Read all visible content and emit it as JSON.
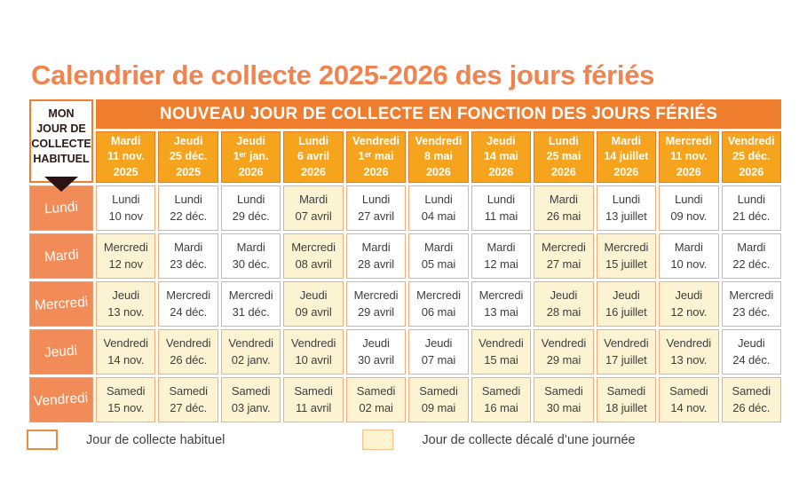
{
  "title": "Calendrier de collecte 2025-2026 des jours fériés",
  "colors": {
    "title_orange": "#F0834E",
    "band_orange": "#EE7D2E",
    "holiday_header_gold": "#F6A41D",
    "row_header_salmon": "#F18C58",
    "shifted_cell_cream": "#FBF3D1",
    "cell_border_peach": "#F2AD7C",
    "text_dark": "#414042",
    "arrow_dark": "#2A1216"
  },
  "table": {
    "corner_header": "MON\nJOUR DE\nCOLLECTE\nHABITUEL",
    "main_header": "NOUVEAU JOUR DE COLLECTE EN FONCTION DES JOURS FÉRIÉS",
    "holiday_columns": [
      {
        "day": "Mardi",
        "date": "11 nov.",
        "year": "2025"
      },
      {
        "day": "Jeudi",
        "date": "25 déc.",
        "year": "2025"
      },
      {
        "day": "Jeudi",
        "date": "1ᵉʳ jan.",
        "year": "2026"
      },
      {
        "day": "Lundi",
        "date": "6 avril",
        "year": "2026"
      },
      {
        "day": "Vendredi",
        "date": "1ᵉʳ mai",
        "year": "2026"
      },
      {
        "day": "Vendredi",
        "date": "8 mai",
        "year": "2026"
      },
      {
        "day": "Jeudi",
        "date": "14 mai",
        "year": "2026"
      },
      {
        "day": "Lundi",
        "date": "25 mai",
        "year": "2026"
      },
      {
        "day": "Mardi",
        "date": "14 juillet",
        "year": "2026"
      },
      {
        "day": "Mercredi",
        "date": "11 nov.",
        "year": "2026"
      },
      {
        "day": "Vendredi",
        "date": "25 déc.",
        "year": "2026"
      }
    ],
    "rows": [
      {
        "label": "Lundi",
        "cells": [
          {
            "day": "Lundi",
            "date": "10 nov",
            "shifted": false
          },
          {
            "day": "Lundi",
            "date": "22 déc.",
            "shifted": false
          },
          {
            "day": "Lundi",
            "date": "29 déc.",
            "shifted": false
          },
          {
            "day": "Mardi",
            "date": "07 avril",
            "shifted": true
          },
          {
            "day": "Lundi",
            "date": "27 avril",
            "shifted": false
          },
          {
            "day": "Lundi",
            "date": "04 mai",
            "shifted": false
          },
          {
            "day": "Lundi",
            "date": "11 mai",
            "shifted": false
          },
          {
            "day": "Mardi",
            "date": "26 mai",
            "shifted": true
          },
          {
            "day": "Lundi",
            "date": "13 juillet",
            "shifted": false
          },
          {
            "day": "Lundi",
            "date": "09 nov.",
            "shifted": false
          },
          {
            "day": "Lundi",
            "date": "21 déc.",
            "shifted": false
          }
        ]
      },
      {
        "label": "Mardi",
        "cells": [
          {
            "day": "Mercredi",
            "date": "12 nov",
            "shifted": true
          },
          {
            "day": "Mardi",
            "date": "23 déc.",
            "shifted": false
          },
          {
            "day": "Mardi",
            "date": "30 déc.",
            "shifted": false
          },
          {
            "day": "Mercredi",
            "date": "08 avril",
            "shifted": true
          },
          {
            "day": "Mardi",
            "date": "28 avril",
            "shifted": false
          },
          {
            "day": "Mardi",
            "date": "05 mai",
            "shifted": false
          },
          {
            "day": "Mardi",
            "date": "12 mai",
            "shifted": false
          },
          {
            "day": "Mercredi",
            "date": "27 mai",
            "shifted": true
          },
          {
            "day": "Mercredi",
            "date": "15 juillet",
            "shifted": true
          },
          {
            "day": "Mardi",
            "date": "10 nov.",
            "shifted": false
          },
          {
            "day": "Mardi",
            "date": "22 déc.",
            "shifted": false
          }
        ]
      },
      {
        "label": "Mercredi",
        "cells": [
          {
            "day": "Jeudi",
            "date": "13 nov.",
            "shifted": true
          },
          {
            "day": "Mercredi",
            "date": "24 déc.",
            "shifted": false
          },
          {
            "day": "Mercredi",
            "date": "31 déc.",
            "shifted": false
          },
          {
            "day": "Jeudi",
            "date": "09 avril",
            "shifted": true
          },
          {
            "day": "Mercredi",
            "date": "29 avril",
            "shifted": false
          },
          {
            "day": "Mercredi",
            "date": "06 mai",
            "shifted": false
          },
          {
            "day": "Mercredi",
            "date": "13 mai",
            "shifted": false
          },
          {
            "day": "Jeudi",
            "date": "28 mai",
            "shifted": true
          },
          {
            "day": "Jeudi",
            "date": "16 juillet",
            "shifted": true
          },
          {
            "day": "Jeudi",
            "date": "12 nov.",
            "shifted": true
          },
          {
            "day": "Mercredi",
            "date": "23 déc.",
            "shifted": false
          }
        ]
      },
      {
        "label": "Jeudi",
        "cells": [
          {
            "day": "Vendredi",
            "date": "14 nov.",
            "shifted": true
          },
          {
            "day": "Vendredi",
            "date": "26 déc.",
            "shifted": true
          },
          {
            "day": "Vendredi",
            "date": "02 janv.",
            "shifted": true
          },
          {
            "day": "Vendredi",
            "date": "10 avril",
            "shifted": true
          },
          {
            "day": "Jeudi",
            "date": "30 avril",
            "shifted": false
          },
          {
            "day": "Jeudi",
            "date": "07 mai",
            "shifted": false
          },
          {
            "day": "Vendredi",
            "date": "15 mai",
            "shifted": true
          },
          {
            "day": "Vendredi",
            "date": "29 mai",
            "shifted": true
          },
          {
            "day": "Vendredi",
            "date": "17 juillet",
            "shifted": true
          },
          {
            "day": "Vendredi",
            "date": "13 nov.",
            "shifted": true
          },
          {
            "day": "Jeudi",
            "date": "24 déc.",
            "shifted": false
          }
        ]
      },
      {
        "label": "Vendredi",
        "cells": [
          {
            "day": "Samedi",
            "date": "15 nov.",
            "shifted": true
          },
          {
            "day": "Samedi",
            "date": "27 déc.",
            "shifted": true
          },
          {
            "day": "Samedi",
            "date": "03 janv.",
            "shifted": true
          },
          {
            "day": "Samedi",
            "date": "11 avril",
            "shifted": true
          },
          {
            "day": "Samedi",
            "date": "02 mai",
            "shifted": true
          },
          {
            "day": "Samedi",
            "date": "09 mai",
            "shifted": true
          },
          {
            "day": "Samedi",
            "date": "16 mai",
            "shifted": true
          },
          {
            "day": "Samedi",
            "date": "30 mai",
            "shifted": true
          },
          {
            "day": "Samedi",
            "date": "18 juillet",
            "shifted": true
          },
          {
            "day": "Samedi",
            "date": "14 nov.",
            "shifted": true
          },
          {
            "day": "Samedi",
            "date": "26 déc.",
            "shifted": true
          }
        ]
      }
    ]
  },
  "legend": {
    "habitual_label": "Jour de collecte habituel",
    "shifted_label": "Jour de collecte décalé d’une journée"
  }
}
